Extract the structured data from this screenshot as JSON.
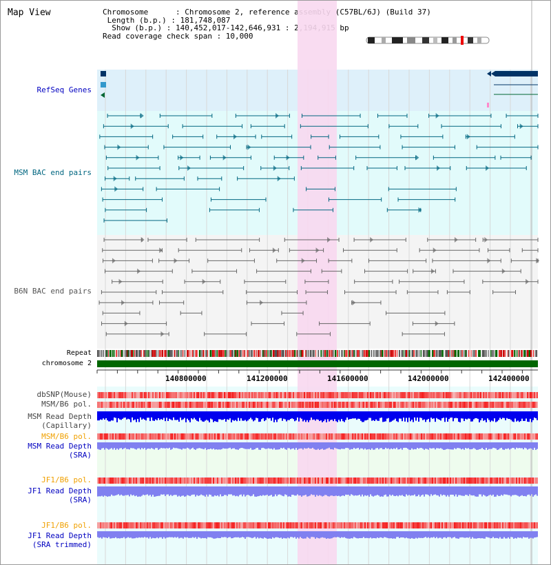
{
  "title": "Map View",
  "info": {
    "chromosome": "Chromosome      : Chromosome 2, reference assembly (C57BL/6J) (Build 37)",
    "length": " Length (b.p.) : 181,748,087",
    "show": "  Show (b.p.) : 140,452,017-142,646,931 : 2,194,915 bp",
    "coverage": "Read coverage check span : 10,000"
  },
  "tracks": {
    "refseq": "RefSeq Genes",
    "msm_bac": "MSM BAC end pairs",
    "b6n_bac": "B6N BAC end pairs",
    "repeat": "Repeat",
    "chromosome": "chromosome 2",
    "dbsnp": "dbSNP(Mouse)",
    "msm_b6_pol": "MSM/B6 pol.",
    "msm_depth_cap_1": "MSM Read Depth",
    "msm_depth_cap_2": "(Capillary)",
    "msm_b6_pol_sra": "MSM/B6 pol.",
    "msm_depth_sra_1": "MSM Read Depth",
    "msm_depth_sra_2": "(SRA)",
    "jf1_b6_pol": "JF1/B6 pol.",
    "jf1_depth_1": "JF1 Read Depth",
    "jf1_depth_2": "(SRA)",
    "jf1_b6_pol_2": "JF1/B6 pol.",
    "jf1_trim_1": "JF1 Read Depth",
    "jf1_trim_2": "(SRA trimmed)"
  },
  "axis_ticks": [
    "140800000",
    "141200000",
    "141600000",
    "142000000",
    "142400000"
  ],
  "colors": {
    "refseq_bg": "#def0fa",
    "bac_bg": "#e2fbfb",
    "highlight": "#f8d8f0",
    "gene": "#003366",
    "msm_feature": "#006680",
    "b6n_feature": "#666666",
    "chromosome_bar": "#006600",
    "depth_capillary": "#0000ee",
    "depth_sra": "#8080f0"
  }
}
